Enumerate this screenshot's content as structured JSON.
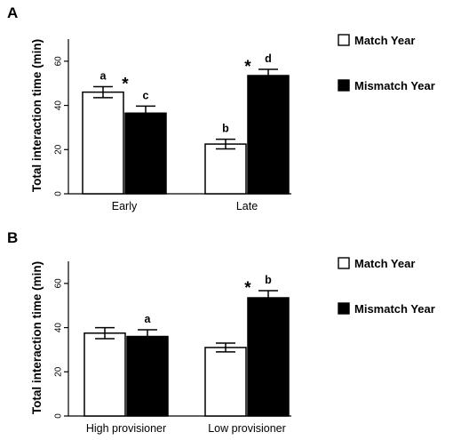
{
  "chart_data": [
    {
      "type": "bar",
      "panel": "A",
      "ylabel": "Total interaction time (min)",
      "ylim": [
        0,
        70
      ],
      "yticks": [
        "0",
        "20",
        "40",
        "60"
      ],
      "categories": [
        "Early",
        "Late"
      ],
      "legend": {
        "placement": "right"
      },
      "series": [
        {
          "name": "Match Year",
          "color": "#ffffff",
          "values": [
            46,
            22.5
          ],
          "errors": [
            2.5,
            2.2
          ],
          "labels": [
            "a",
            "b"
          ]
        },
        {
          "name": "Mismatch Year",
          "color": "#000000",
          "values": [
            36.5,
            53.5
          ],
          "errors": [
            3.2,
            2.8
          ],
          "labels": [
            "c",
            "d"
          ]
        }
      ],
      "significance": [
        "*",
        "*"
      ]
    },
    {
      "type": "bar",
      "panel": "B",
      "ylabel": "Total interaction time (min)",
      "ylim": [
        0,
        70
      ],
      "yticks": [
        "0",
        "20",
        "40",
        "60"
      ],
      "categories": [
        "High provisioner",
        "Low provisioner"
      ],
      "legend": {
        "placement": "right"
      },
      "series": [
        {
          "name": "Match Year",
          "color": "#ffffff",
          "values": [
            37.5,
            31
          ],
          "errors": [
            2.5,
            2.0
          ],
          "labels": [
            "",
            ""
          ]
        },
        {
          "name": "Mismatch Year",
          "color": "#000000",
          "values": [
            36,
            53.5
          ],
          "errors": [
            3.0,
            3.2
          ],
          "labels": [
            "a",
            "b"
          ]
        }
      ],
      "significance": [
        "",
        "*"
      ]
    }
  ]
}
